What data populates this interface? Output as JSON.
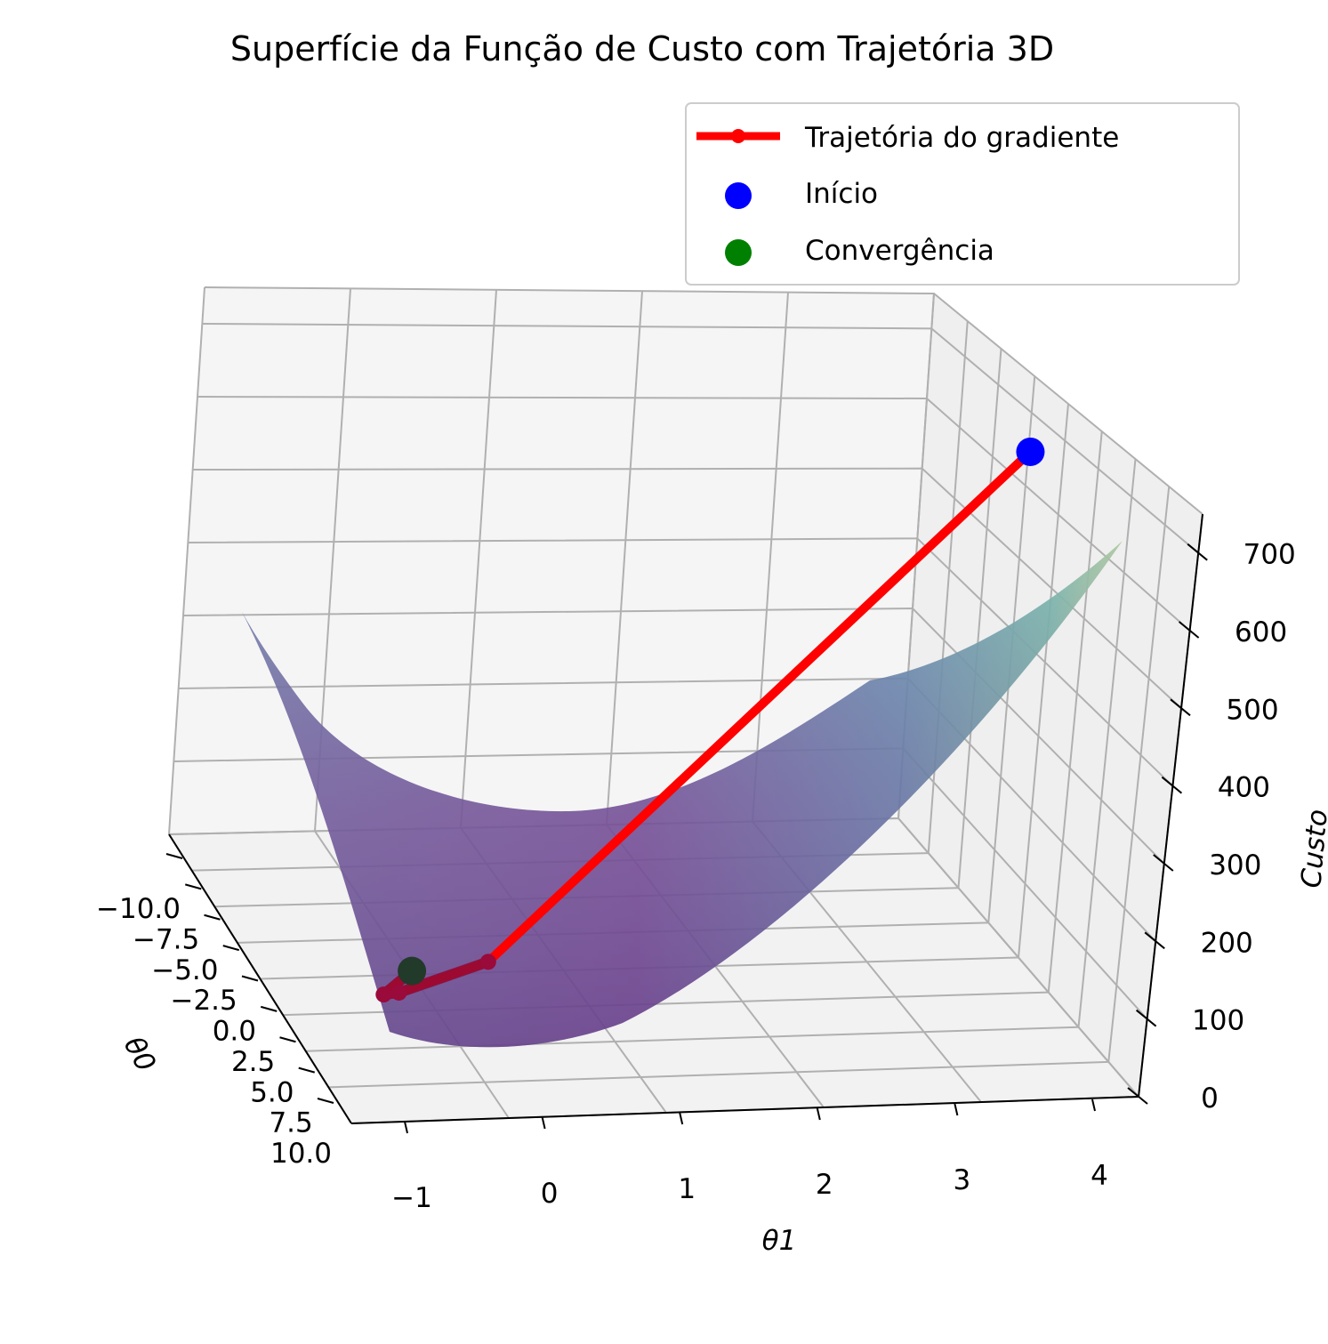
{
  "chart_data": {
    "type": "surface3d",
    "title": "Superfície da Função de Custo com Trajetória 3D",
    "xlabel": "θ1",
    "ylabel": "θ0",
    "zlabel": "Custo",
    "x_ticks": [
      "−1",
      "0",
      "1",
      "2",
      "3",
      "4"
    ],
    "y_ticks": [
      "−10.0",
      "−7.5",
      "−5.0",
      "−2.5",
      "0.0",
      "2.5",
      "5.0",
      "7.5",
      "10.0"
    ],
    "z_ticks": [
      "0",
      "100",
      "200",
      "300",
      "400",
      "500",
      "600",
      "700"
    ],
    "xlim": [
      -1,
      4
    ],
    "ylim": [
      -10,
      10
    ],
    "zlim": [
      0,
      750
    ],
    "colormap": "viridis",
    "legend": {
      "position": "top-right",
      "entries": [
        "Trajetória do gradiente",
        "Início",
        "Convergência"
      ]
    },
    "trajectory": [
      {
        "theta1": 4.0,
        "theta0": 0.0,
        "cost": 700
      },
      {
        "theta1": 0.4,
        "theta0": 1.5,
        "cost": 45
      },
      {
        "theta1": -0.2,
        "theta0": 1.8,
        "cost": 12
      },
      {
        "theta1": -0.3,
        "theta0": 1.8,
        "cost": 10
      },
      {
        "theta1": 0.0,
        "theta0": 0.0,
        "cost": 5
      }
    ],
    "start_point": {
      "theta1": 4.0,
      "theta0": 0.0,
      "cost": 700
    },
    "end_point": {
      "theta1": 0.0,
      "theta0": 0.0,
      "cost": 5
    },
    "colors": {
      "trajectory": "#ff0000",
      "start": "#0000ff",
      "end": "#008000",
      "pane": "#f2f2f2",
      "grid": "#b0b0b0"
    }
  }
}
